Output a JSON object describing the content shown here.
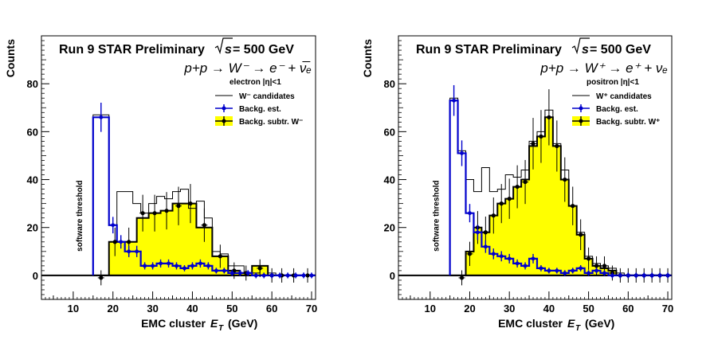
{
  "chart_data": [
    {
      "type": "histogram",
      "title": "Run 9 STAR Preliminary",
      "energy": "= 500 GeV",
      "process": "p+p → W⁻ → e⁻ + ν̅ₑ",
      "eta_label": "electron |η|<1",
      "ylabel": "Counts",
      "xlabel": "EMC cluster",
      "xlabel_unit": "(GeV)",
      "xlim": [
        2,
        71
      ],
      "ylim": [
        -10,
        100
      ],
      "xticks": [
        10,
        20,
        30,
        40,
        50,
        60,
        70
      ],
      "yticks": [
        0,
        20,
        40,
        60,
        80
      ],
      "threshold_label": "software threshold",
      "legend": [
        {
          "label": "W⁻ candidates",
          "style": "line"
        },
        {
          "label": "Backg. est.",
          "style": "blue-marker"
        },
        {
          "label": "Backg. subtr. W⁻",
          "style": "yellow-fill"
        }
      ],
      "candidates": {
        "edges": [
          15,
          19,
          21,
          23,
          25,
          27,
          29,
          31,
          33,
          35,
          37,
          39,
          41,
          43,
          45,
          47,
          49,
          51,
          53,
          55,
          57,
          59,
          61,
          63,
          65,
          67,
          69,
          71
        ],
        "values": [
          67,
          21,
          35,
          35,
          30,
          26,
          30,
          33,
          32,
          35,
          36,
          28,
          31,
          24,
          10,
          9,
          4,
          4,
          1,
          1,
          4,
          1,
          0,
          0,
          0,
          0,
          0
        ]
      },
      "background": {
        "edges": [
          15,
          19,
          21,
          23,
          25,
          27,
          29,
          31,
          33,
          35,
          37,
          39,
          41,
          43,
          45,
          47,
          49,
          51,
          53,
          55,
          57,
          59,
          61,
          63,
          65,
          67,
          69,
          71
        ],
        "values": [
          66,
          21,
          14,
          10,
          10,
          4,
          4,
          5,
          5,
          4,
          3,
          4,
          5,
          4,
          2,
          2,
          1,
          1,
          1,
          0,
          0,
          0,
          0,
          0,
          0,
          0,
          0
        ]
      },
      "subtracted": {
        "edges": [
          15,
          19,
          22,
          26,
          29,
          32,
          35,
          38,
          41,
          45,
          49,
          52,
          55,
          59,
          61,
          64,
          67,
          71
        ],
        "values": [
          0,
          14,
          14,
          24,
          26,
          27,
          30,
          30,
          20,
          8,
          2,
          1,
          4,
          0,
          0,
          0,
          0
        ]
      },
      "subtracted_points": [
        {
          "x": 17,
          "y": -1
        },
        {
          "x": 20.5,
          "y": 14
        },
        {
          "x": 24,
          "y": 14
        },
        {
          "x": 27.5,
          "y": 26
        },
        {
          "x": 30.5,
          "y": 26
        },
        {
          "x": 33.5,
          "y": 27
        },
        {
          "x": 36.5,
          "y": 29
        },
        {
          "x": 39.5,
          "y": 30
        },
        {
          "x": 43,
          "y": 21
        },
        {
          "x": 47,
          "y": 8
        },
        {
          "x": 50.5,
          "y": 2
        },
        {
          "x": 53.5,
          "y": 1
        },
        {
          "x": 57,
          "y": 3
        },
        {
          "x": 60,
          "y": 0
        },
        {
          "x": 62.5,
          "y": 0
        },
        {
          "x": 65.5,
          "y": 0
        },
        {
          "x": 69,
          "y": 0
        }
      ],
      "background_points": [
        {
          "x": 17,
          "y": 66
        },
        {
          "x": 20,
          "y": 21
        },
        {
          "x": 22,
          "y": 14
        },
        {
          "x": 24,
          "y": 10
        },
        {
          "x": 26,
          "y": 10
        },
        {
          "x": 28,
          "y": 4
        },
        {
          "x": 30,
          "y": 4
        },
        {
          "x": 32,
          "y": 5
        },
        {
          "x": 34,
          "y": 5
        },
        {
          "x": 36,
          "y": 4
        },
        {
          "x": 38,
          "y": 3
        },
        {
          "x": 40,
          "y": 4
        },
        {
          "x": 42,
          "y": 5
        },
        {
          "x": 44,
          "y": 4
        },
        {
          "x": 46,
          "y": 2
        },
        {
          "x": 48,
          "y": 2
        },
        {
          "x": 50,
          "y": 1
        },
        {
          "x": 52,
          "y": 1
        },
        {
          "x": 54,
          "y": 1
        },
        {
          "x": 56,
          "y": 0
        },
        {
          "x": 58,
          "y": 0
        },
        {
          "x": 60,
          "y": 0
        },
        {
          "x": 62,
          "y": 0
        },
        {
          "x": 64,
          "y": 0
        },
        {
          "x": 66,
          "y": 0
        },
        {
          "x": 68,
          "y": 0
        },
        {
          "x": 70,
          "y": 0
        }
      ]
    },
    {
      "type": "histogram",
      "title": "Run 9 STAR Preliminary",
      "energy": "= 500 GeV",
      "process": "p+p → W⁺ → e⁺ + νₑ",
      "eta_label": "positron |η|<1",
      "ylabel": "Counts",
      "xlabel": "EMC cluster",
      "xlabel_unit": "(GeV)",
      "xlim": [
        2,
        71
      ],
      "ylim": [
        -10,
        100
      ],
      "xticks": [
        10,
        20,
        30,
        40,
        50,
        60,
        70
      ],
      "yticks": [
        0,
        20,
        40,
        60,
        80
      ],
      "threshold_label": "software threshold",
      "legend": [
        {
          "label": "W⁺ candidates",
          "style": "line"
        },
        {
          "label": "Backg. est.",
          "style": "blue-marker"
        },
        {
          "label": "Backg. subtr. W⁺",
          "style": "yellow-fill"
        }
      ],
      "candidates": {
        "edges": [
          15,
          17,
          19,
          21,
          23,
          25,
          27,
          29,
          31,
          33,
          35,
          37,
          39,
          41,
          43,
          45,
          47,
          49,
          51,
          53,
          55,
          57,
          59,
          61,
          63,
          65,
          67,
          69,
          71
        ],
        "values": [
          74,
          52,
          40,
          35,
          45,
          35,
          36,
          42,
          41,
          44,
          56,
          60,
          69,
          55,
          44,
          29,
          18,
          8,
          5,
          4,
          3,
          1,
          0,
          0,
          0,
          0,
          0,
          0
        ]
      },
      "background": {
        "edges": [
          15,
          17,
          19,
          21,
          23,
          25,
          27,
          29,
          31,
          33,
          35,
          37,
          39,
          41,
          43,
          45,
          47,
          49,
          51,
          53,
          55,
          57,
          59,
          61,
          63,
          65,
          67,
          69,
          71
        ],
        "values": [
          73,
          51,
          26,
          18,
          12,
          9,
          8,
          7,
          5,
          4,
          7,
          3,
          2,
          2,
          1,
          2,
          3,
          1,
          2,
          1,
          0,
          0,
          0,
          0,
          0,
          0,
          0,
          0
        ]
      },
      "subtracted": {
        "edges": [
          15,
          19,
          21,
          23,
          25,
          27,
          29,
          31,
          33,
          35,
          37,
          39,
          41,
          43,
          45,
          47,
          49,
          51,
          53,
          55,
          57,
          59,
          61,
          63,
          65,
          67,
          69,
          71
        ],
        "values": [
          0,
          10,
          20,
          18,
          25,
          30,
          32,
          37,
          40,
          54,
          58,
          66,
          54,
          40,
          29,
          17,
          7,
          4,
          3,
          2,
          0,
          0,
          0,
          0,
          0,
          0,
          0
        ]
      },
      "subtracted_points": [
        {
          "x": 18,
          "y": -1
        },
        {
          "x": 20,
          "y": 9
        },
        {
          "x": 22,
          "y": 20
        },
        {
          "x": 24,
          "y": 18
        },
        {
          "x": 26,
          "y": 25
        },
        {
          "x": 28,
          "y": 30
        },
        {
          "x": 30,
          "y": 32
        },
        {
          "x": 32,
          "y": 37
        },
        {
          "x": 34,
          "y": 39
        },
        {
          "x": 36,
          "y": 55
        },
        {
          "x": 38,
          "y": 58
        },
        {
          "x": 40,
          "y": 66
        },
        {
          "x": 42,
          "y": 54
        },
        {
          "x": 44,
          "y": 40
        },
        {
          "x": 46,
          "y": 29
        },
        {
          "x": 48,
          "y": 17
        },
        {
          "x": 50,
          "y": 7
        },
        {
          "x": 52,
          "y": 4
        },
        {
          "x": 54,
          "y": 4
        },
        {
          "x": 56,
          "y": 1
        },
        {
          "x": 58,
          "y": 0
        },
        {
          "x": 60,
          "y": 0
        },
        {
          "x": 62,
          "y": 0
        },
        {
          "x": 64,
          "y": 0
        },
        {
          "x": 66,
          "y": 0
        },
        {
          "x": 68,
          "y": 0
        },
        {
          "x": 70,
          "y": 0
        }
      ],
      "background_points": [
        {
          "x": 16,
          "y": 73
        },
        {
          "x": 18,
          "y": 51
        },
        {
          "x": 20,
          "y": 26
        },
        {
          "x": 22,
          "y": 18
        },
        {
          "x": 24,
          "y": 12
        },
        {
          "x": 26,
          "y": 9
        },
        {
          "x": 28,
          "y": 8
        },
        {
          "x": 30,
          "y": 7
        },
        {
          "x": 32,
          "y": 5
        },
        {
          "x": 34,
          "y": 4
        },
        {
          "x": 36,
          "y": 7
        },
        {
          "x": 38,
          "y": 3
        },
        {
          "x": 40,
          "y": 2
        },
        {
          "x": 42,
          "y": 2
        },
        {
          "x": 44,
          "y": 1
        },
        {
          "x": 46,
          "y": 2
        },
        {
          "x": 48,
          "y": 3
        },
        {
          "x": 50,
          "y": 1
        },
        {
          "x": 52,
          "y": 2
        },
        {
          "x": 54,
          "y": 1
        },
        {
          "x": 56,
          "y": 0
        },
        {
          "x": 58,
          "y": 0
        },
        {
          "x": 60,
          "y": 0
        },
        {
          "x": 62,
          "y": 0
        },
        {
          "x": 64,
          "y": 0
        },
        {
          "x": 66,
          "y": 0
        },
        {
          "x": 68,
          "y": 0
        },
        {
          "x": 70,
          "y": 0
        }
      ]
    }
  ],
  "colors": {
    "fill": "#ffff00",
    "background": "#0000cc",
    "line": "#000000",
    "threshold": "#0000cc"
  }
}
